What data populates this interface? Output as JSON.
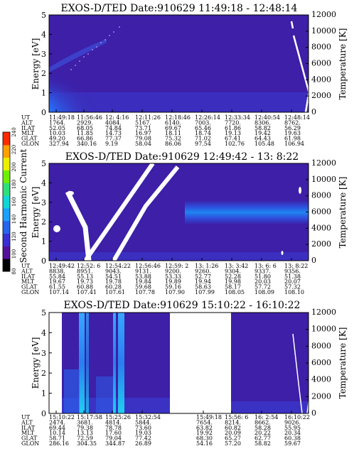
{
  "colors": {
    "background": "#3d1fa8",
    "lowband": "#3a3ad0",
    "dot": "#f0c8f0",
    "white": "#ffffff"
  },
  "colorbar": {
    "label": "Second Harmonic Current",
    "ticks": [
      "80",
      "100",
      "120",
      "140",
      "160",
      "180",
      "200",
      "220",
      "240"
    ],
    "colors": [
      "#000000",
      "#55119b",
      "#3a2fd6",
      "#2666ee",
      "#1aa0ff",
      "#11d6d6",
      "#2ee07a",
      "#70f000",
      "#eaf000",
      "#ffa000",
      "#ff2a00"
    ]
  },
  "chart_data": [
    {
      "type": "heatmap",
      "title": "EXOS-D/TED   Date:910629   11:49:18 - 12:48:14",
      "ylabel": "Energy [eV]",
      "y2label": "Temperature [K]",
      "ylim": [
        0,
        5
      ],
      "y2lim": [
        0,
        12000
      ],
      "yticks": [
        "0",
        "1",
        "2",
        "3",
        "4",
        "5"
      ],
      "y2ticks": [
        "0",
        "2000",
        "4000",
        "6000",
        "8000",
        "10000",
        "12000"
      ],
      "row_labels": [
        "UT",
        "ALT",
        "ILAT",
        "MLT",
        "GLAT",
        "GLON"
      ],
      "columns": [
        [
          "11:49:18",
          "1764.",
          "52.05",
          "10.03",
          "49.20",
          "327.94"
        ],
        [
          "11:56:46",
          "2929.",
          "68.05",
          "11.85",
          "66.86",
          "340.16"
        ],
        [
          "12: 4:16",
          "4084.",
          "74.84",
          "14.73",
          "77.37",
          "9.19"
        ],
        [
          "12:11:26",
          "5167.",
          "73.71",
          "16.97",
          "79.08",
          "58.04"
        ],
        [
          "12:18:46",
          "6140.",
          "69.67",
          "18.11",
          "75.32",
          "86.06"
        ],
        [
          "12:26:14",
          "7003.",
          "65.46",
          "18.74",
          "71.02",
          "97.54"
        ],
        [
          "12:33:34",
          "7720.",
          "61.86",
          "19.13",
          "67.41",
          "102.76"
        ],
        [
          "12:40:54",
          "8306.",
          "58.82",
          "19.42",
          "64.43",
          "105.48"
        ],
        [
          "12:48:14",
          "8762.",
          "56.29",
          "19.63",
          "61.98",
          "106.94"
        ]
      ]
    },
    {
      "type": "heatmap",
      "title": "EXOS-D/TED   Date:910629   12:49:42 - 13: 8:22",
      "ylabel": "Energy [eV]",
      "y2label": "Temperature [K]",
      "ylim": [
        0,
        5
      ],
      "y2lim": [
        0,
        12000
      ],
      "yticks": [
        "0",
        "1",
        "2",
        "3",
        "4",
        "5"
      ],
      "y2ticks": [
        "0",
        "2000",
        "4000",
        "6000",
        "8000",
        "10000",
        "12000"
      ],
      "row_labels": [
        "UT",
        "ALT",
        "ILAT",
        "MLT",
        "GLAT",
        "GLON"
      ],
      "columns": [
        [
          "12:49:42",
          "8838.",
          "55.84",
          "19.67",
          "61.55",
          "107.14"
        ],
        [
          "12:52: 6",
          "8951.",
          "55.13",
          "19.73",
          "60.88",
          "107.41"
        ],
        [
          "12:54:22",
          "9043.",
          "54.51",
          "19.78",
          "60.28",
          "107.61"
        ],
        [
          "12:56:46",
          "9131.",
          "53.88",
          "19.84",
          "59.68",
          "107.78"
        ],
        [
          "12:59: 2",
          "9200.",
          "53.33",
          "19.89",
          "59.16",
          "107.90"
        ],
        [
          "13: 1:26",
          "9260.",
          "52.77",
          "19.94",
          "58.63",
          "107.99"
        ],
        [
          "13: 3:42",
          "9304.",
          "52.28",
          "19.98",
          "58.17",
          "108.05"
        ],
        [
          "13: 6: 6",
          "9337.",
          "51.80",
          "20.03",
          "57.72",
          "108.09"
        ],
        [
          "13: 8:22",
          "9356.",
          "51.38",
          "20.07",
          "57.32",
          "108.10"
        ]
      ]
    },
    {
      "type": "heatmap",
      "title": "EXOS-D/TED   Date:910629   15:10:22 - 16:10:22",
      "ylabel": "Energy [eV]",
      "y2label": "Temperature [K]",
      "ylim": [
        0,
        5
      ],
      "y2lim": [
        0,
        12000
      ],
      "yticks": [
        "0",
        "1",
        "2",
        "3",
        "4",
        "5"
      ],
      "y2ticks": [
        "0",
        "2000",
        "4000",
        "6000",
        "8000",
        "10000",
        "12000"
      ],
      "row_labels": [
        "UT",
        "ALT",
        "ILAT",
        "MLT",
        "GLAT",
        "GLON"
      ],
      "columns": [
        [
          "15:10:22",
          "2474.",
          "69.44",
          "10.14",
          "58.71",
          "286.16"
        ],
        [
          "15:17:58",
          "3681.",
          "79.38",
          "13.13",
          "72.59",
          "304.35"
        ],
        [
          "15:25:26",
          "4814.",
          "78.78",
          "17.60",
          "79.04",
          "344.87"
        ],
        [
          "15:32:54",
          "5844.",
          "73.60",
          "19.03",
          "77.42",
          "26.89"
        ],
        [
          "",
          "",
          "",
          "",
          "",
          ""
        ],
        [
          "15:49:18",
          "7654.",
          "63.82",
          "19.92",
          "68.30",
          "54.16"
        ],
        [
          "15:56: 6",
          "8214.",
          "60.82",
          "20.09",
          "65.27",
          "57.20"
        ],
        [
          "16: 2:54",
          "8662.",
          "58.28",
          "20.22",
          "62.77",
          "58.82"
        ],
        [
          "16:10:22",
          "9026.",
          "55.95",
          "20.34",
          "60.38",
          "59.67"
        ]
      ]
    }
  ]
}
